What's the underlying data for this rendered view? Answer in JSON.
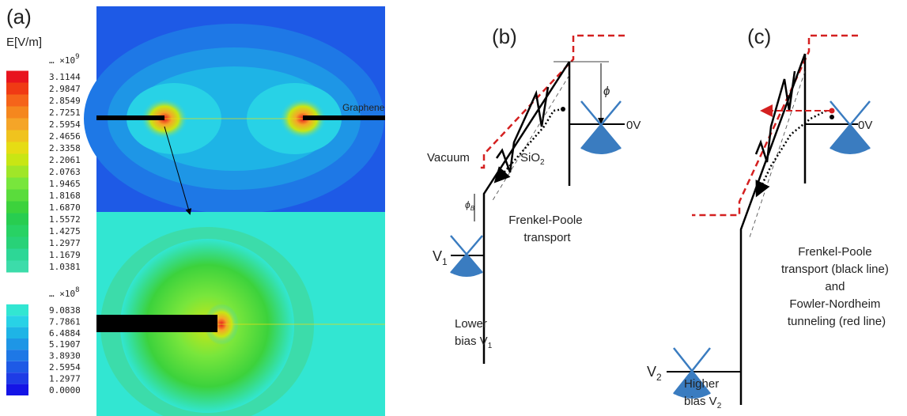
{
  "panel_a": {
    "label": "(a)",
    "unit": "E[V/m]",
    "graphene_label": "Graphene",
    "scale_high": {
      "prefix": "… ×10",
      "exponent": "9",
      "levels": [
        "3.1144",
        "2.9847",
        "2.8549",
        "2.7251",
        "2.5954",
        "2.4656",
        "2.3358",
        "2.2061",
        "2.0763",
        "1.9465",
        "1.8168",
        "1.6870",
        "1.5572",
        "1.4275",
        "1.2977",
        "1.1679",
        "1.0381"
      ],
      "colors": [
        "#e8141e",
        "#f03a14",
        "#f5641a",
        "#f5871e",
        "#f5a528",
        "#f0c31e",
        "#e6dc14",
        "#c8e614",
        "#a0e628",
        "#78e63c",
        "#5adc3c",
        "#3cd23c",
        "#28cd50",
        "#28d264",
        "#28d278",
        "#2dd796",
        "#3cdcaa"
      ]
    },
    "scale_low": {
      "prefix": "… ×10",
      "exponent": "8",
      "levels": [
        "9.0838",
        "7.7861",
        "6.4884",
        "5.1907",
        "3.8930",
        "2.5954",
        "1.2977",
        "0.0000"
      ],
      "colors": [
        "#32e6d2",
        "#28d2e6",
        "#1eb4e6",
        "#1e96e6",
        "#1e78e6",
        "#1e5ae6",
        "#1e3ce6",
        "#1414e6"
      ]
    }
  },
  "panel_b": {
    "label": "(b)",
    "vacuum": "Vacuum",
    "oxide": {
      "text": "SiO",
      "sub": "2"
    },
    "barrier": "ϕ",
    "barrier_b": {
      "text": "ϕ",
      "sub": "B"
    },
    "ground": "0V",
    "bias": {
      "text": "V",
      "sub": "1"
    },
    "mechanism": [
      "Frenkel-Poole",
      "transport"
    ],
    "caption": {
      "lines": [
        "Lower",
        "bias V"
      ],
      "sub": "1"
    }
  },
  "panel_c": {
    "label": "(c)",
    "ground": "0V",
    "bias": {
      "text": "V",
      "sub": "2"
    },
    "mechanism": [
      "Frenkel-Poole",
      "transport (black line)",
      "and",
      "Fowler-Nordheim",
      "tunneling (red line)"
    ],
    "caption": {
      "lines": [
        "Higher",
        "bias V"
      ],
      "sub": "2"
    }
  }
}
